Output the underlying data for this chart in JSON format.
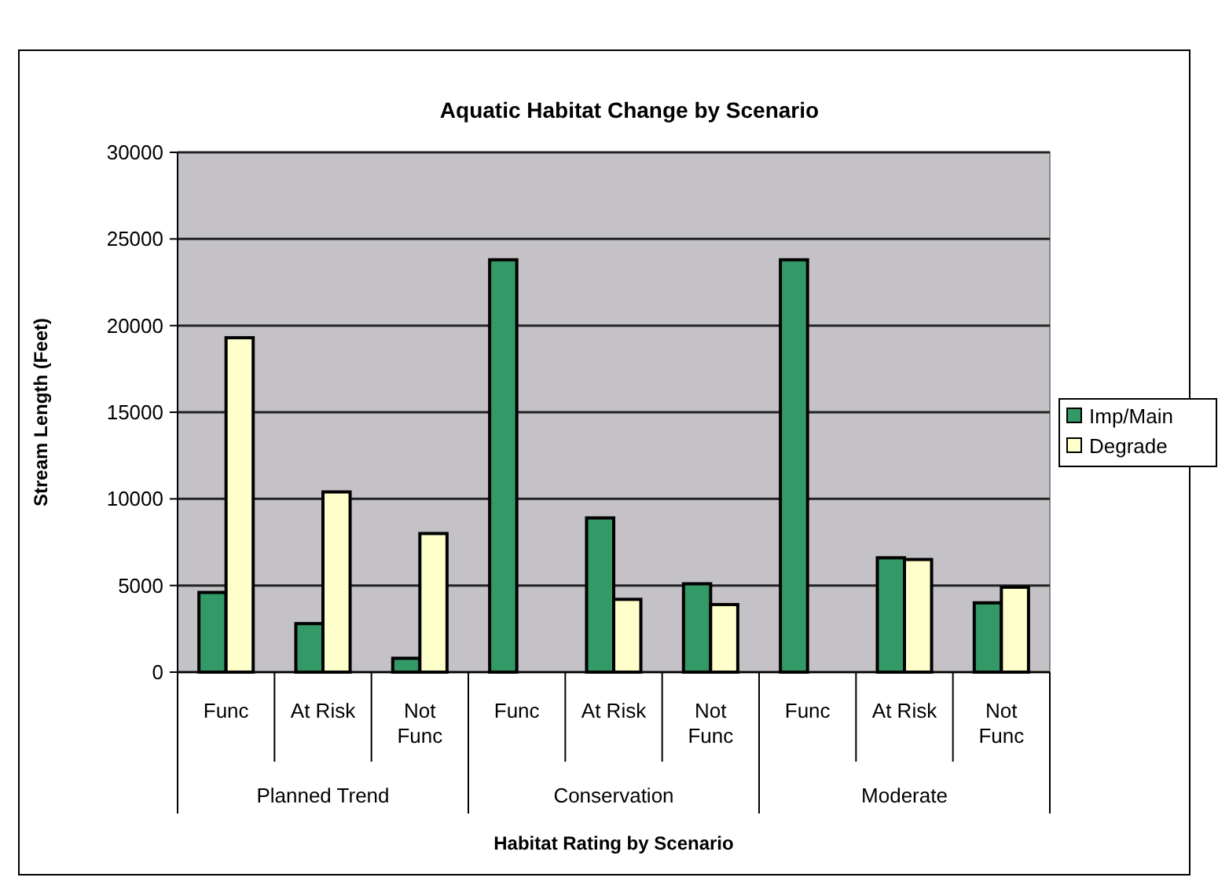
{
  "chart_data": {
    "type": "bar",
    "title": "Aquatic Habitat Change by Scenario",
    "xlabel": "Habitat Rating by Scenario",
    "ylabel": "Stream Length (Feet)",
    "categories": [
      "Func",
      "At Risk",
      "Not Func",
      "Func",
      "At Risk",
      "Not Func",
      "Func",
      "At Risk",
      "Not Func"
    ],
    "annotations": [
      "Planned Trend",
      "Conservation",
      "Moderate"
    ],
    "series": [
      {
        "name": "Imp/Main",
        "color": "#339966",
        "values": [
          4600,
          2800,
          800,
          23800,
          8900,
          5100,
          23800,
          6600,
          4000
        ]
      },
      {
        "name": "Degrade",
        "color": "#ffffcc",
        "values": [
          19300,
          10400,
          8000,
          0,
          4200,
          3900,
          0,
          6500,
          4900
        ]
      }
    ],
    "ylim": [
      0,
      30000
    ],
    "yticks": [
      0,
      5000,
      10000,
      15000,
      20000,
      25000,
      30000
    ],
    "grid": "y",
    "legend": "right"
  }
}
